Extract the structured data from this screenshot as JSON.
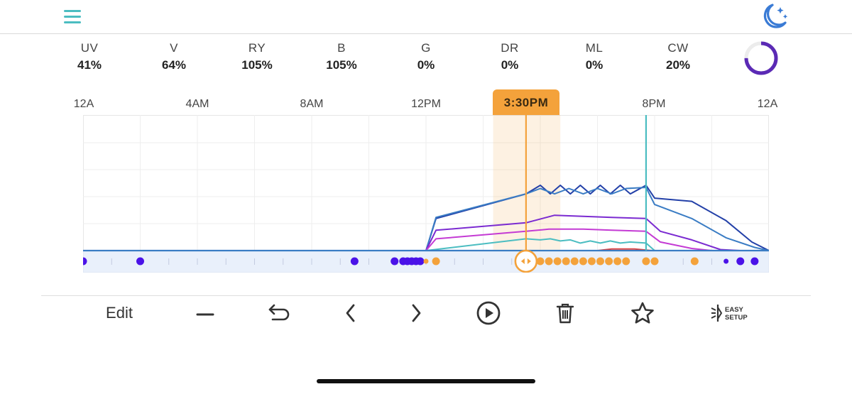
{
  "header": {
    "menu_icon": "hamburger-menu-icon",
    "mode_icon": "moon-stars-icon",
    "accent_color": "#4bbdc1",
    "mode_color": "#3a7bd5"
  },
  "channels": [
    {
      "name": "UV",
      "value": "41%"
    },
    {
      "name": "V",
      "value": "64%"
    },
    {
      "name": "RY",
      "value": "105%"
    },
    {
      "name": "B",
      "value": "105%"
    },
    {
      "name": "G",
      "value": "0%"
    },
    {
      "name": "DR",
      "value": "0%"
    },
    {
      "name": "ML",
      "value": "0%"
    },
    {
      "name": "CW",
      "value": "20%"
    }
  ],
  "progress_ring": {
    "fraction": 0.75,
    "color": "#5b2ab5"
  },
  "timeline": {
    "labels": [
      {
        "text": "12A",
        "hour": 0
      },
      {
        "text": "4AM",
        "hour": 4
      },
      {
        "text": "8AM",
        "hour": 8
      },
      {
        "text": "12PM",
        "hour": 12
      },
      {
        "text": "8PM",
        "hour": 20
      },
      {
        "text": "12A",
        "hour": 24
      }
    ],
    "current_time_label": "3:30PM",
    "current_hour": 15.5,
    "highlight_hours": [
      14.35,
      16.7
    ],
    "marker_hour": 19.7
  },
  "chart_data": {
    "type": "line",
    "xlim": [
      0,
      24
    ],
    "ylim": [
      0,
      120
    ],
    "series": [
      {
        "color": "#2340a8",
        "points": [
          [
            0,
            0
          ],
          [
            12,
            0
          ],
          [
            12.35,
            30
          ],
          [
            15.5,
            53
          ],
          [
            16.0,
            61
          ],
          [
            16.35,
            53
          ],
          [
            16.7,
            61
          ],
          [
            17.05,
            53
          ],
          [
            17.4,
            61
          ],
          [
            17.75,
            53
          ],
          [
            18.1,
            61
          ],
          [
            18.45,
            53
          ],
          [
            18.8,
            61
          ],
          [
            19.15,
            53
          ],
          [
            19.7,
            61
          ],
          [
            20.0,
            49
          ],
          [
            21.3,
            46
          ],
          [
            22.5,
            28
          ],
          [
            23.4,
            8
          ],
          [
            24,
            0
          ]
        ]
      },
      {
        "color": "#3a7cc4",
        "points": [
          [
            0,
            0
          ],
          [
            12,
            0
          ],
          [
            12.35,
            31
          ],
          [
            15.5,
            53
          ],
          [
            16.0,
            58
          ],
          [
            16.5,
            53
          ],
          [
            17.0,
            58
          ],
          [
            17.5,
            53
          ],
          [
            18.0,
            58
          ],
          [
            18.5,
            53
          ],
          [
            19.0,
            58
          ],
          [
            19.7,
            59
          ],
          [
            20.0,
            43
          ],
          [
            21.3,
            30
          ],
          [
            22.5,
            12
          ],
          [
            23.5,
            3
          ],
          [
            24,
            0
          ]
        ]
      },
      {
        "color": "#7b2bd1",
        "points": [
          [
            0,
            0
          ],
          [
            12,
            0
          ],
          [
            12.35,
            19
          ],
          [
            15.5,
            26
          ],
          [
            16.5,
            33
          ],
          [
            17.5,
            32
          ],
          [
            18.5,
            31
          ],
          [
            19.7,
            30
          ],
          [
            20.2,
            18
          ],
          [
            21.3,
            10
          ],
          [
            22.3,
            1
          ],
          [
            23,
            0
          ],
          [
            24,
            0
          ]
        ]
      },
      {
        "color": "#c43bd4",
        "points": [
          [
            0,
            0
          ],
          [
            12,
            0
          ],
          [
            12.35,
            11
          ],
          [
            15.5,
            18
          ],
          [
            16.3,
            20
          ],
          [
            17.5,
            20
          ],
          [
            18.5,
            19
          ],
          [
            19.7,
            18
          ],
          [
            20.2,
            8
          ],
          [
            21.3,
            2
          ],
          [
            22,
            0
          ],
          [
            24,
            0
          ]
        ]
      },
      {
        "color": "#4bbdc1",
        "points": [
          [
            0,
            0
          ],
          [
            12,
            0
          ],
          [
            15.5,
            11
          ],
          [
            16.0,
            10
          ],
          [
            16.35,
            11
          ],
          [
            16.7,
            9
          ],
          [
            17.05,
            10
          ],
          [
            17.4,
            7
          ],
          [
            17.75,
            9
          ],
          [
            18.1,
            7
          ],
          [
            18.45,
            9
          ],
          [
            18.8,
            7
          ],
          [
            19.15,
            8
          ],
          [
            19.7,
            7
          ],
          [
            20,
            0
          ],
          [
            24,
            0
          ]
        ]
      },
      {
        "color": "#d94040",
        "points": [
          [
            18.0,
            0
          ],
          [
            18.5,
            1.5
          ],
          [
            19.3,
            1.5
          ],
          [
            19.9,
            0
          ]
        ]
      }
    ],
    "points": [
      {
        "hour": 0.0,
        "color": "#4a12e8",
        "size": "large"
      },
      {
        "hour": 2.0,
        "color": "#4a12e8",
        "size": "large"
      },
      {
        "hour": 9.5,
        "color": "#4a12e8",
        "size": "large"
      },
      {
        "hour": 10.9,
        "color": "#4a12e8",
        "size": "large"
      },
      {
        "hour": 11.2,
        "color": "#4a12e8",
        "size": "large"
      },
      {
        "hour": 11.35,
        "color": "#4a12e8",
        "size": "large"
      },
      {
        "hour": 11.5,
        "color": "#4a12e8",
        "size": "large"
      },
      {
        "hour": 11.65,
        "color": "#4a12e8",
        "size": "large"
      },
      {
        "hour": 11.8,
        "color": "#4a12e8",
        "size": "large"
      },
      {
        "hour": 12.0,
        "color": "#f4a23b",
        "size": "small"
      },
      {
        "hour": 12.35,
        "color": "#f4a23b",
        "size": "large"
      },
      {
        "hour": 16.0,
        "color": "#f4a23b",
        "size": "large"
      },
      {
        "hour": 16.3,
        "color": "#f4a23b",
        "size": "large"
      },
      {
        "hour": 16.6,
        "color": "#f4a23b",
        "size": "large"
      },
      {
        "hour": 16.9,
        "color": "#f4a23b",
        "size": "large"
      },
      {
        "hour": 17.2,
        "color": "#f4a23b",
        "size": "large"
      },
      {
        "hour": 17.5,
        "color": "#f4a23b",
        "size": "large"
      },
      {
        "hour": 17.8,
        "color": "#f4a23b",
        "size": "large"
      },
      {
        "hour": 18.1,
        "color": "#f4a23b",
        "size": "large"
      },
      {
        "hour": 18.4,
        "color": "#f4a23b",
        "size": "large"
      },
      {
        "hour": 18.7,
        "color": "#f4a23b",
        "size": "large"
      },
      {
        "hour": 19.0,
        "color": "#f4a23b",
        "size": "large"
      },
      {
        "hour": 19.7,
        "color": "#f4a23b",
        "size": "large"
      },
      {
        "hour": 20.0,
        "color": "#f4a23b",
        "size": "large"
      },
      {
        "hour": 21.4,
        "color": "#f4a23b",
        "size": "large"
      },
      {
        "hour": 22.5,
        "color": "#4a12e8",
        "size": "small"
      },
      {
        "hour": 23.0,
        "color": "#4a12e8",
        "size": "large"
      },
      {
        "hour": 23.5,
        "color": "#4a12e8",
        "size": "large"
      }
    ]
  },
  "toolbar": {
    "edit_label": "Edit",
    "easy_setup_line1": "EASY",
    "easy_setup_line2": "SETUP",
    "icons": [
      "minus-icon",
      "undo-icon",
      "chevron-left-icon",
      "chevron-right-icon",
      "play-circle-icon",
      "trash-icon",
      "star-icon",
      "easy-setup-icon"
    ]
  }
}
